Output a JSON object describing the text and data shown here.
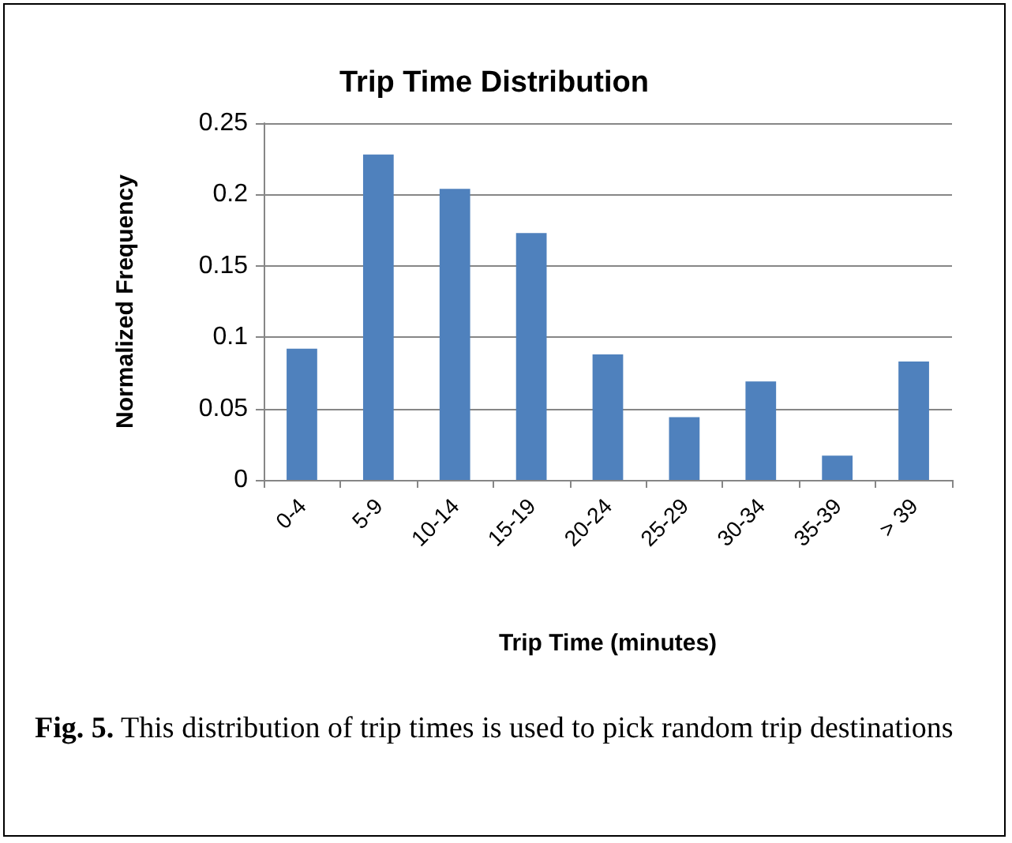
{
  "chart_data": {
    "type": "bar",
    "title": "Trip Time Distribution",
    "xlabel": "Trip Time (minutes)",
    "ylabel": "Normalized Frequency",
    "categories": [
      "0-4",
      "5-9",
      "10-14",
      "15-19",
      "20-24",
      "25-29",
      "30-34",
      "35-39",
      "> 39"
    ],
    "values": [
      0.092,
      0.228,
      0.204,
      0.173,
      0.088,
      0.044,
      0.069,
      0.017,
      0.083
    ],
    "color": "#4f81bd",
    "ylim": [
      0,
      0.25
    ],
    "yticks": [
      0,
      0.05,
      0.1,
      0.15,
      0.2,
      0.25
    ],
    "grid": "y",
    "annotations": [
      "Fig. 5. This distribution of trip times is used to pick random trip destinations"
    ]
  }
}
